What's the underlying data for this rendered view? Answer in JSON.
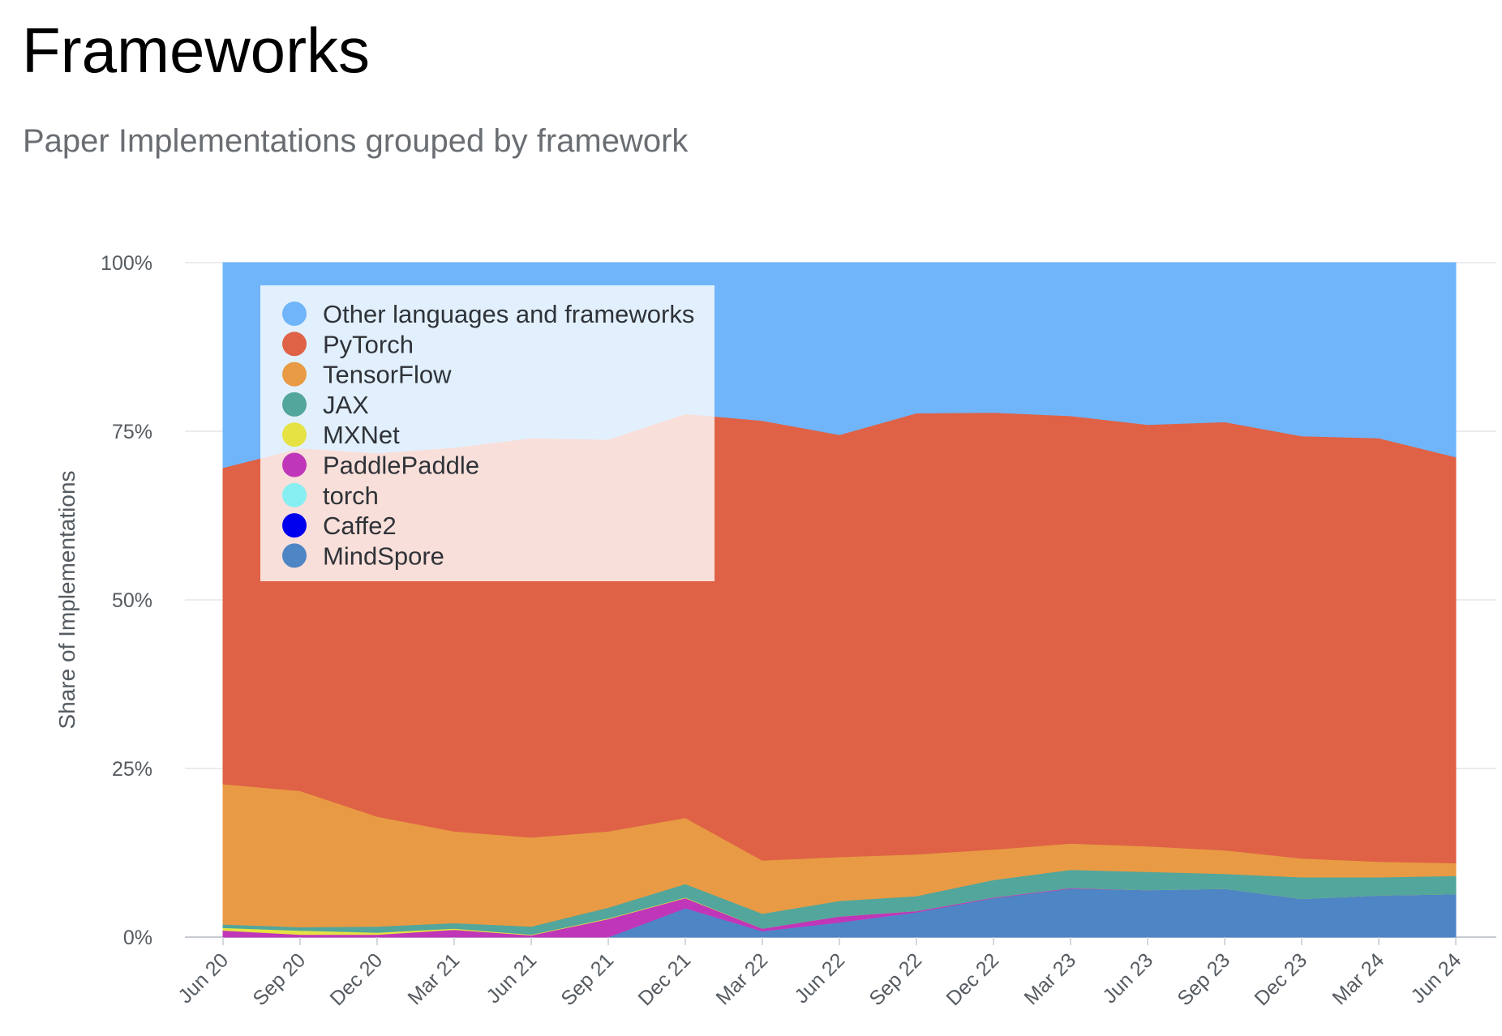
{
  "header": {
    "title": "Frameworks",
    "subtitle": "Paper Implementations grouped by framework"
  },
  "chart_data": {
    "type": "area",
    "stacked": true,
    "xlabel": "",
    "ylabel": "Share of Implementations",
    "ylim": [
      0,
      100
    ],
    "y_ticks": [
      "0%",
      "25%",
      "50%",
      "75%",
      "100%"
    ],
    "y_tick_values": [
      0,
      25,
      50,
      75,
      100
    ],
    "categories": [
      "Jun 20",
      "Sep 20",
      "Dec 20",
      "Mar 21",
      "Jun 21",
      "Sep 21",
      "Dec 21",
      "Mar 22",
      "Jun 22",
      "Sep 22",
      "Dec 22",
      "Mar 23",
      "Jun 23",
      "Sep 23",
      "Dec 23",
      "Mar 24",
      "Jun 24"
    ],
    "grid": true,
    "legend_position": "top-left",
    "series": [
      {
        "name": "MindSpore",
        "color": "#4e85c5",
        "values": [
          0.0,
          0.0,
          0.0,
          0.0,
          0.0,
          0.0,
          4.3,
          0.9,
          2.2,
          3.7,
          5.8,
          7.2,
          7.0,
          7.2,
          5.7,
          6.2,
          6.4
        ]
      },
      {
        "name": "Caffe2",
        "color": "#0000ee",
        "values": [
          0,
          0,
          0,
          0,
          0,
          0,
          0,
          0,
          0,
          0,
          0,
          0,
          0,
          0,
          0,
          0,
          0
        ]
      },
      {
        "name": "torch",
        "color": "#87eef2",
        "values": [
          0,
          0,
          0,
          0,
          0,
          0,
          0,
          0,
          0,
          0,
          0,
          0,
          0,
          0,
          0,
          0,
          0
        ]
      },
      {
        "name": "PaddlePaddle",
        "color": "#c036b9",
        "values": [
          1.0,
          0.4,
          0.4,
          1.1,
          0.3,
          2.7,
          1.5,
          0.4,
          0.9,
          0.2,
          0.1,
          0.1,
          0.0,
          0.0,
          0.0,
          0.0,
          0.0
        ]
      },
      {
        "name": "MXNet",
        "color": "#e6e243",
        "values": [
          0.4,
          0.6,
          0.3,
          0.2,
          0.1,
          0.1,
          0.1,
          0.0,
          0.0,
          0.0,
          0.0,
          0.0,
          0.0,
          0.0,
          0.0,
          0.0,
          0.0
        ]
      },
      {
        "name": "JAX",
        "color": "#52a69c",
        "values": [
          0.5,
          0.5,
          0.9,
          0.8,
          1.2,
          1.6,
          2.0,
          2.2,
          2.3,
          2.2,
          2.6,
          2.7,
          2.7,
          2.2,
          3.2,
          2.7,
          2.7
        ]
      },
      {
        "name": "TensorFlow",
        "color": "#e89b44",
        "values": [
          20.8,
          20.2,
          16.3,
          13.6,
          13.2,
          11.3,
          9.8,
          7.9,
          6.5,
          6.2,
          4.5,
          3.9,
          3.8,
          3.5,
          2.8,
          2.3,
          1.9
        ]
      },
      {
        "name": "PyTorch",
        "color": "#df6246",
        "values": [
          46.9,
          50.8,
          53.9,
          56.9,
          59.2,
          58.1,
          59.9,
          65.2,
          62.6,
          65.4,
          64.8,
          63.4,
          62.5,
          63.5,
          62.6,
          62.8,
          60.2
        ]
      },
      {
        "name": "Other languages and frameworks",
        "color": "#70b5f9",
        "values": [
          30.4,
          27.5,
          28.2,
          27.4,
          26.0,
          26.2,
          22.4,
          23.4,
          25.5,
          22.3,
          22.2,
          22.7,
          24.0,
          23.6,
          25.7,
          26.0,
          28.8
        ]
      }
    ],
    "legend_order": [
      "Other languages and frameworks",
      "PyTorch",
      "TensorFlow",
      "JAX",
      "MXNet",
      "PaddlePaddle",
      "torch",
      "Caffe2",
      "MindSpore"
    ]
  }
}
